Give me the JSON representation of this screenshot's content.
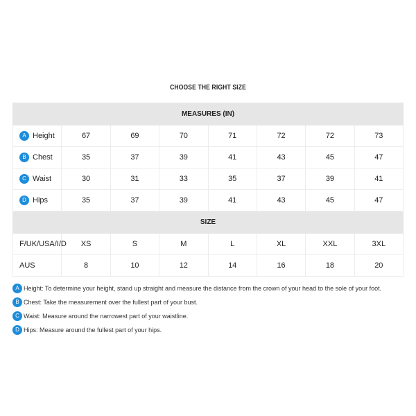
{
  "title": "CHOOSE THE RIGHT SIZE",
  "accent": "#1c8ddb",
  "measures": {
    "header": "MEASURES (IN)",
    "rows": [
      {
        "badge": "A",
        "label": "Height",
        "values": [
          "67",
          "69",
          "70",
          "71",
          "72",
          "72",
          "73"
        ]
      },
      {
        "badge": "B",
        "label": "Chest",
        "values": [
          "35",
          "37",
          "39",
          "41",
          "43",
          "45",
          "47"
        ]
      },
      {
        "badge": "C",
        "label": "Waist",
        "values": [
          "30",
          "31",
          "33",
          "35",
          "37",
          "39",
          "41"
        ]
      },
      {
        "badge": "D",
        "label": "Hips",
        "values": [
          "35",
          "37",
          "39",
          "41",
          "43",
          "45",
          "47"
        ]
      }
    ]
  },
  "sizes": {
    "header": "SIZE",
    "rows": [
      {
        "label": "F/UK/USA/I/D",
        "values": [
          "XS",
          "S",
          "M",
          "L",
          "XL",
          "XXL",
          "3XL"
        ]
      },
      {
        "label": "AUS",
        "values": [
          "8",
          "10",
          "12",
          "14",
          "16",
          "18",
          "20"
        ]
      }
    ]
  },
  "notes": [
    {
      "badge": "A",
      "text": "Height: To determine your height, stand up straight and measure the distance from the crown of your head to the sole of your foot."
    },
    {
      "badge": "B",
      "text": "Chest: Take the measurement over the fullest part of your bust."
    },
    {
      "badge": "C",
      "text": "Waist: Measure around the narrowest part of your waistline."
    },
    {
      "badge": "D",
      "text": "Hips: Measure around the fullest part of your hips."
    }
  ]
}
